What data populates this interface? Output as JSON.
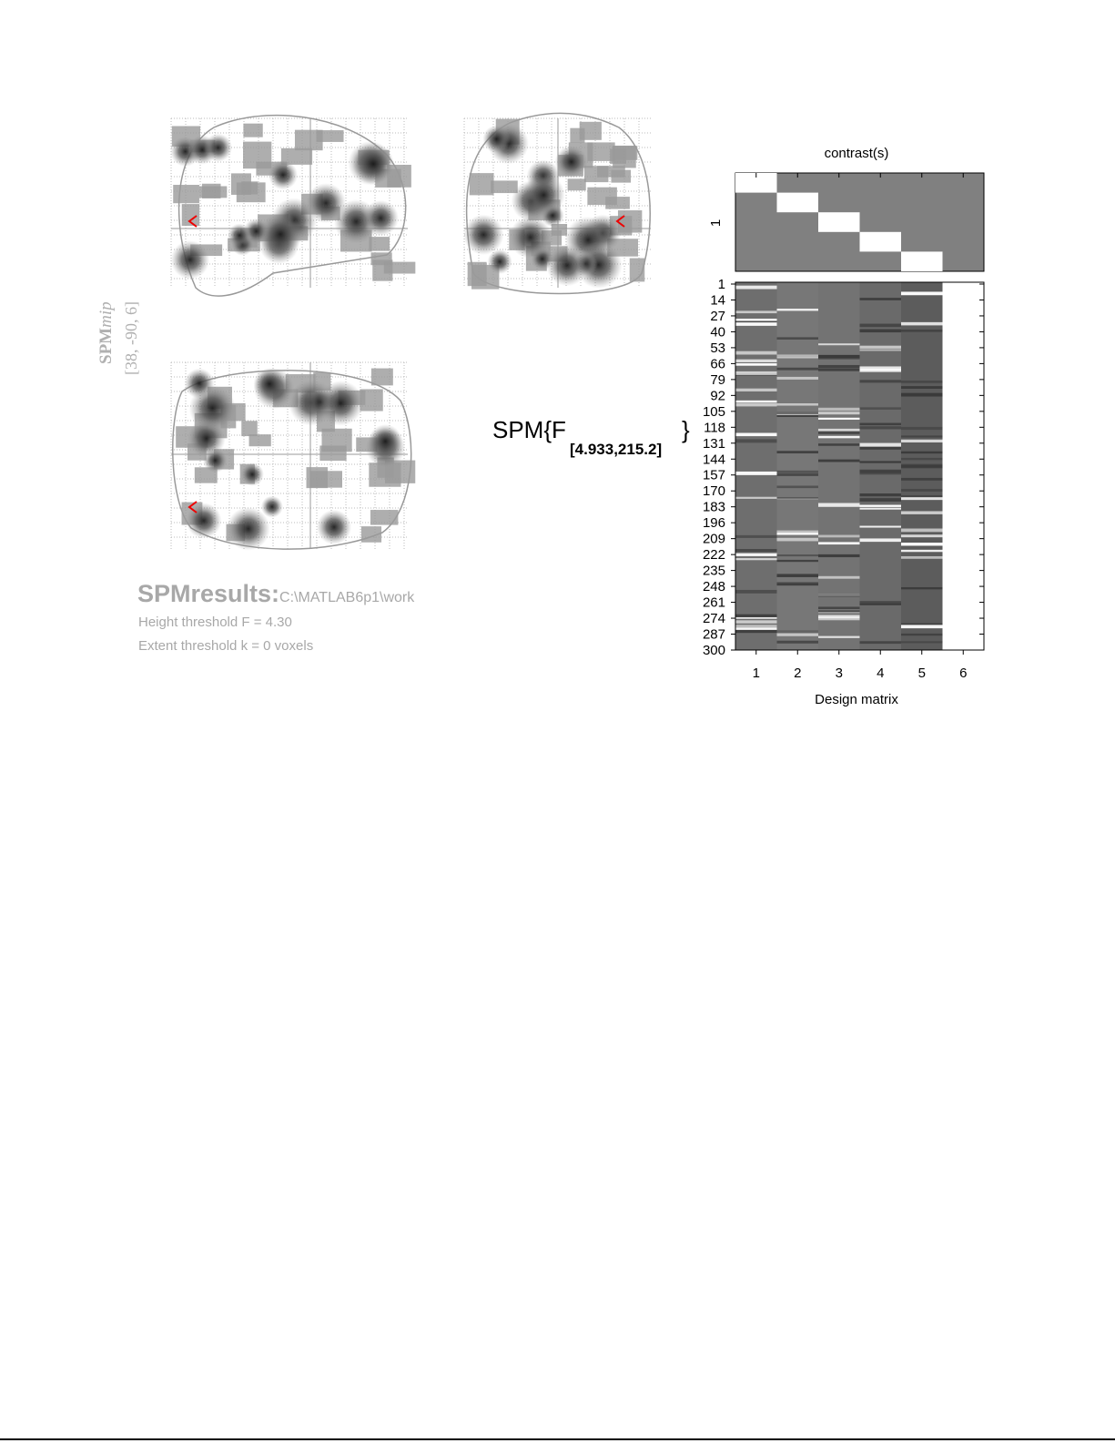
{
  "mip": {
    "label": "SPM",
    "label_subscript": "mip",
    "coordinates": "[38, -90, 6]"
  },
  "results": {
    "title": "SPMresults:",
    "path": "C:\\MATLAB6p1\\work",
    "height_threshold": "Height threshold F = 4.30",
    "extent_threshold": "Extent threshold k = 0 voxels"
  },
  "statistic": {
    "label": "SPM{F",
    "degrees_of_freedom": "[4.933,215.2]",
    "closing": "}"
  },
  "contrast": {
    "title": "contrast(s)",
    "row_label": "1"
  },
  "design_matrix": {
    "title": "Design matrix",
    "row_ticks": [
      1,
      14,
      27,
      40,
      53,
      66,
      79,
      92,
      105,
      118,
      131,
      144,
      157,
      170,
      183,
      196,
      209,
      222,
      235,
      248,
      261,
      274,
      287,
      300
    ],
    "column_ticks": [
      1,
      2,
      3,
      4,
      5,
      6
    ]
  }
}
